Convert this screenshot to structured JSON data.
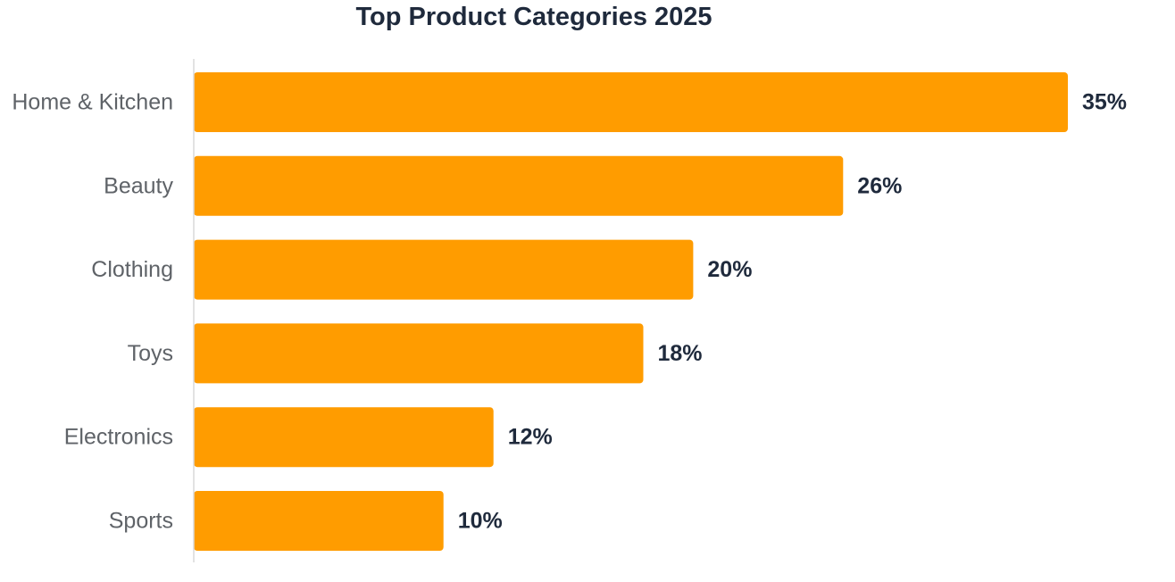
{
  "chart_data": {
    "type": "bar",
    "orientation": "horizontal",
    "title": "Top Product Categories 2025",
    "xlabel": "",
    "ylabel": "",
    "categories": [
      "Home & Kitchen",
      "Beauty",
      "Clothing",
      "Toys",
      "Electronics",
      "Sports"
    ],
    "values": [
      35,
      26,
      20,
      18,
      12,
      10
    ],
    "value_labels": [
      "35%",
      "26%",
      "20%",
      "18%",
      "12%",
      "10%"
    ],
    "unit": "%",
    "xlim": [
      0,
      35
    ],
    "grid": false,
    "legend": "none",
    "bar_color": "#ff9c00",
    "axis_color": "#d9d9d9",
    "category_label_color": "#5f6368",
    "value_label_color": "#1f2a3c",
    "title_color": "#1f2a3c"
  }
}
